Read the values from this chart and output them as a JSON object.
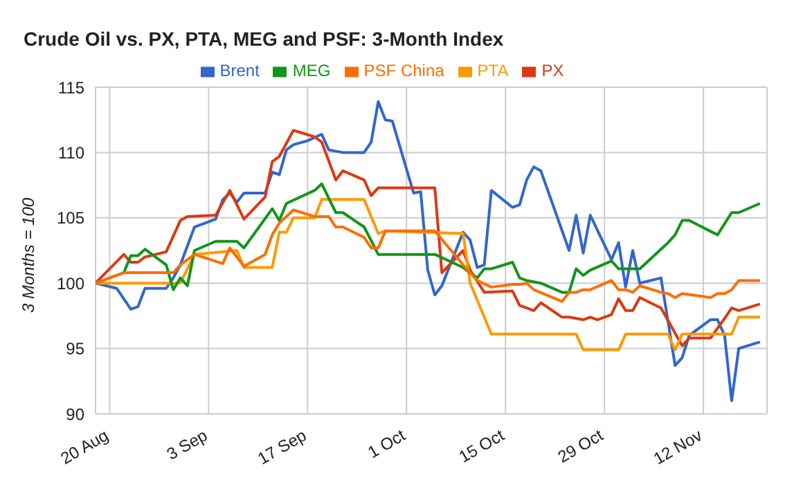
{
  "chart_data": {
    "type": "line",
    "title": "Crude Oil vs. PX, PTA, MEG and PSF: 3-Month Index",
    "ylabel": "3 Months = 100",
    "xlim": [
      "--08-18",
      "--11-21"
    ],
    "xticks": [
      {
        "value": "--08-20",
        "label": "20 Aug"
      },
      {
        "value": "--09-03",
        "label": "3 Sep"
      },
      {
        "value": "--09-17",
        "label": "17 Sep"
      },
      {
        "value": "--10-01",
        "label": "1 Oct"
      },
      {
        "value": "--10-15",
        "label": "15 Oct"
      },
      {
        "value": "--10-29",
        "label": "29 Oct"
      },
      {
        "value": "--11-12",
        "label": "12 Nov"
      }
    ],
    "ylim": [
      90,
      115
    ],
    "yticks": [
      90,
      95,
      100,
      105,
      110,
      115
    ],
    "grid": true,
    "legend": "top",
    "line_style": "solid",
    "series": [
      {
        "name": "Brent",
        "color": "#3366cc",
        "x": [
          "--08-18",
          "--08-21",
          "--08-23",
          "--08-24",
          "--08-25",
          "--08-28",
          "--08-29",
          "--08-30",
          "--09-01",
          "--09-04",
          "--09-05",
          "--09-06",
          "--09-07",
          "--09-08",
          "--09-11",
          "--09-12",
          "--09-13",
          "--09-14",
          "--09-15",
          "--09-17",
          "--09-19",
          "--09-20",
          "--09-22",
          "--09-25",
          "--09-26",
          "--09-27",
          "--09-28",
          "--09-29",
          "--10-02",
          "--10-03",
          "--10-04",
          "--10-05",
          "--10-06",
          "--10-09",
          "--10-10",
          "--10-11",
          "--10-12",
          "--10-13",
          "--10-16",
          "--10-17",
          "--10-18",
          "--10-19",
          "--10-20",
          "--10-24",
          "--10-25",
          "--10-26",
          "--10-27",
          "--10-30",
          "--10-31",
          "--11-01",
          "--11-02",
          "--11-03",
          "--11-06",
          "--11-08",
          "--11-09",
          "--11-10",
          "--11-13",
          "--11-14",
          "--11-15",
          "--11-16",
          "--11-17",
          "--11-20"
        ],
        "values": [
          100,
          99.6,
          98,
          98.2,
          99.6,
          99.6,
          100.4,
          101.4,
          104.3,
          104.9,
          106.4,
          106.9,
          106.2,
          106.9,
          106.9,
          108.5,
          108.3,
          110.2,
          110.6,
          110.9,
          111.4,
          110.2,
          110,
          110,
          110.8,
          113.9,
          112.5,
          112.4,
          106.9,
          107,
          101,
          99.1,
          99.8,
          103.9,
          103.3,
          101.2,
          101.4,
          107.1,
          105.8,
          106,
          107.9,
          108.9,
          108.6,
          102.5,
          105.2,
          102.3,
          105.2,
          101.8,
          103.1,
          99.7,
          102.5,
          100,
          100.4,
          93.7,
          94.3,
          96,
          97.2,
          97.2,
          96,
          91,
          95,
          95.5
        ]
      },
      {
        "name": "PX",
        "color": "#dc3912",
        "x": [
          "--08-18",
          "--08-22",
          "--08-23",
          "--08-24",
          "--08-25",
          "--08-28",
          "--08-30",
          "--08-31",
          "--09-04",
          "--09-06",
          "--09-08",
          "--09-11",
          "--09-12",
          "--09-13",
          "--09-15",
          "--09-18",
          "--09-19",
          "--09-21",
          "--09-22",
          "--09-25",
          "--09-26",
          "--09-27",
          "--10-05",
          "--10-06",
          "--10-09",
          "--10-10",
          "--10-12",
          "--10-16",
          "--10-17",
          "--10-19",
          "--10-20",
          "--10-23",
          "--10-24",
          "--10-26",
          "--10-27",
          "--10-28",
          "--10-30",
          "--10-31",
          "--11-01",
          "--11-02",
          "--11-03",
          "--11-06",
          "--11-09",
          "--11-10",
          "--11-13",
          "--11-15",
          "--11-16",
          "--11-17",
          "--11-20"
        ],
        "values": [
          100,
          102.2,
          101.6,
          101.6,
          102,
          102.4,
          104.8,
          105.1,
          105.2,
          107.1,
          104.9,
          106.6,
          109.3,
          109.7,
          111.7,
          111.2,
          110.8,
          107.9,
          108.6,
          107.9,
          106.7,
          107.3,
          107.3,
          100.8,
          102.5,
          101,
          99.3,
          99.4,
          98.3,
          97.9,
          98.5,
          97.4,
          97.4,
          97.2,
          97.4,
          97.2,
          97.6,
          98.8,
          97.9,
          97.9,
          98.9,
          98.1,
          95.2,
          95.8,
          95.8,
          97.3,
          98.1,
          97.9,
          98.4
        ]
      },
      {
        "name": "PTA",
        "color": "#ff9900",
        "x": [
          "--08-18",
          "--08-30",
          "--09-01",
          "--09-07",
          "--09-08",
          "--09-12",
          "--09-13",
          "--09-14",
          "--09-15",
          "--09-18",
          "--09-19",
          "--09-25",
          "--09-27",
          "--09-28",
          "--10-09",
          "--10-10",
          "--10-13",
          "--10-25",
          "--10-26",
          "--10-31",
          "--11-01",
          "--11-07",
          "--11-08",
          "--11-09",
          "--11-16",
          "--11-17",
          "--11-20"
        ],
        "values": [
          100,
          100,
          102.2,
          102.5,
          101.2,
          101.2,
          103.9,
          103.9,
          105,
          105,
          106.4,
          106.4,
          103.8,
          104,
          103.8,
          100,
          96.1,
          96.1,
          94.9,
          94.9,
          96.1,
          96.1,
          94.9,
          96.1,
          96.1,
          97.4,
          97.4
        ]
      },
      {
        "name": "MEG",
        "color": "#109618",
        "x": [
          "--08-18",
          "--08-22",
          "--08-23",
          "--08-24",
          "--08-25",
          "--08-28",
          "--08-29",
          "--08-30",
          "--08-31",
          "--09-01",
          "--09-04",
          "--09-07",
          "--09-08",
          "--09-12",
          "--09-13",
          "--09-14",
          "--09-18",
          "--09-19",
          "--09-21",
          "--09-22",
          "--09-25",
          "--09-27",
          "--10-05",
          "--10-09",
          "--10-11",
          "--10-12",
          "--10-13",
          "--10-16",
          "--10-17",
          "--10-18",
          "--10-20",
          "--10-23",
          "--10-24",
          "--10-25",
          "--10-26",
          "--10-27",
          "--10-30",
          "--10-31",
          "--11-03",
          "--11-07",
          "--11-08",
          "--11-09",
          "--11-10",
          "--11-14",
          "--11-16",
          "--11-17",
          "--11-20"
        ],
        "values": [
          100,
          100.8,
          102.1,
          102.1,
          102.6,
          101.4,
          99.5,
          100.4,
          99.8,
          102.5,
          103.2,
          103.2,
          102.7,
          105.7,
          104.8,
          106.1,
          107.1,
          107.6,
          105.4,
          105.4,
          104.3,
          102.2,
          102.2,
          101.2,
          100.4,
          101.1,
          101.1,
          101.6,
          100.4,
          100.2,
          100,
          99.3,
          99.3,
          101.1,
          100.6,
          101,
          101.7,
          101.1,
          101.1,
          103.1,
          103.7,
          104.8,
          104.8,
          103.7,
          105.4,
          105.4,
          106.1
        ]
      },
      {
        "name": "PSF China",
        "color": "#ff6d01",
        "x": [
          "--08-18",
          "--08-22",
          "--08-29",
          "--08-30",
          "--09-01",
          "--09-05",
          "--09-06",
          "--09-08",
          "--09-11",
          "--09-12",
          "--09-13",
          "--09-15",
          "--09-18",
          "--09-20",
          "--09-21",
          "--09-22",
          "--09-25",
          "--09-26",
          "--09-27",
          "--09-28",
          "--10-05",
          "--10-09",
          "--10-11",
          "--10-13",
          "--10-16",
          "--10-17",
          "--10-18",
          "--10-19",
          "--10-23",
          "--10-24",
          "--10-25",
          "--10-26",
          "--10-27",
          "--10-30",
          "--10-31",
          "--11-01",
          "--11-02",
          "--11-03",
          "--11-06",
          "--11-07",
          "--11-08",
          "--11-09",
          "--11-13",
          "--11-14",
          "--11-15",
          "--11-16",
          "--11-17",
          "--11-20"
        ],
        "values": [
          100,
          100.8,
          100.8,
          101.4,
          102.2,
          101.5,
          102.7,
          101.3,
          102.2,
          103.7,
          104.6,
          105.6,
          105.1,
          105.1,
          104.3,
          104.3,
          103.5,
          102.7,
          102.7,
          104,
          104,
          101.4,
          100.2,
          99.7,
          99.9,
          99.9,
          100,
          99.5,
          98.6,
          99.3,
          99.3,
          99.5,
          99.5,
          100.2,
          99.5,
          99.5,
          99.3,
          99.8,
          99.3,
          99.2,
          98.9,
          99.2,
          98.9,
          99.2,
          99.2,
          99.5,
          100.2,
          100.2
        ]
      }
    ]
  }
}
